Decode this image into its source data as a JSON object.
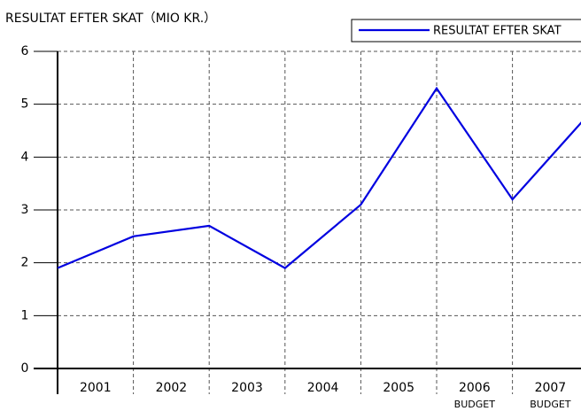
{
  "chart_data": {
    "type": "line",
    "title": "RESULTAT EFTER SKAT（MIO KR.）",
    "categories": [
      "2001",
      "2002",
      "2003",
      "2004",
      "2005",
      "2006",
      "2007",
      null
    ],
    "category_sublabels": [
      null,
      null,
      null,
      null,
      null,
      "BUDGET",
      "BUDGET",
      null
    ],
    "series": [
      {
        "name": "RESULTAT EFTER SKAT",
        "color": "#0000e0",
        "values": [
          1.9,
          2.5,
          2.7,
          1.9,
          3.1,
          5.3,
          3.2,
          4.8
        ]
      }
    ],
    "ylim": [
      0,
      6
    ],
    "yticks": [
      0,
      1,
      2,
      3,
      4,
      5,
      6
    ],
    "grid": true,
    "legend": "top-right"
  }
}
